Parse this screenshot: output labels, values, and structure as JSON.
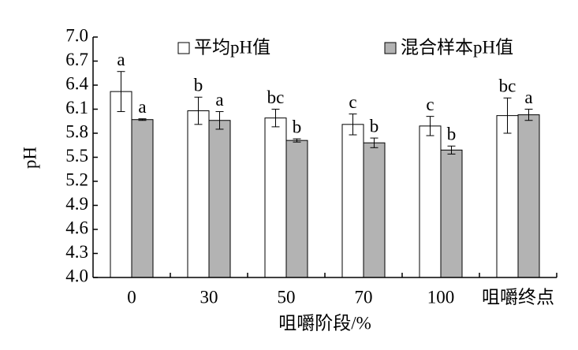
{
  "chart_data": {
    "type": "bar",
    "x_label": "咀嚼阶段/%",
    "y_label": "pH",
    "categories": [
      "0",
      "30",
      "50",
      "70",
      "100",
      "咀嚼终点"
    ],
    "series": [
      {
        "name": "平均pH值",
        "color": "#ffffff",
        "values": [
          6.32,
          6.08,
          5.99,
          5.91,
          5.89,
          6.02
        ],
        "errors": [
          0.25,
          0.17,
          0.11,
          0.13,
          0.12,
          0.22
        ],
        "letters": [
          "a",
          "b",
          "bc",
          "c",
          "c",
          "bc"
        ]
      },
      {
        "name": "混合样本pH值",
        "color": "#b3b3b3",
        "values": [
          5.97,
          5.96,
          5.71,
          5.68,
          5.59,
          6.03
        ],
        "errors": [
          0.01,
          0.11,
          0.02,
          0.06,
          0.05,
          0.07
        ],
        "letters": [
          "a",
          "a",
          "b",
          "b",
          "b",
          "a"
        ]
      }
    ],
    "ylim": [
      4.0,
      7.0
    ],
    "yticks": [
      {
        "value": 4.0,
        "label": "4.0"
      },
      4.3,
      4.6,
      4.9,
      5.2,
      5.5,
      5.8,
      6.1,
      6.4,
      6.7,
      {
        "value": 7.0,
        "label": "7.0"
      }
    ],
    "legend": "top"
  }
}
